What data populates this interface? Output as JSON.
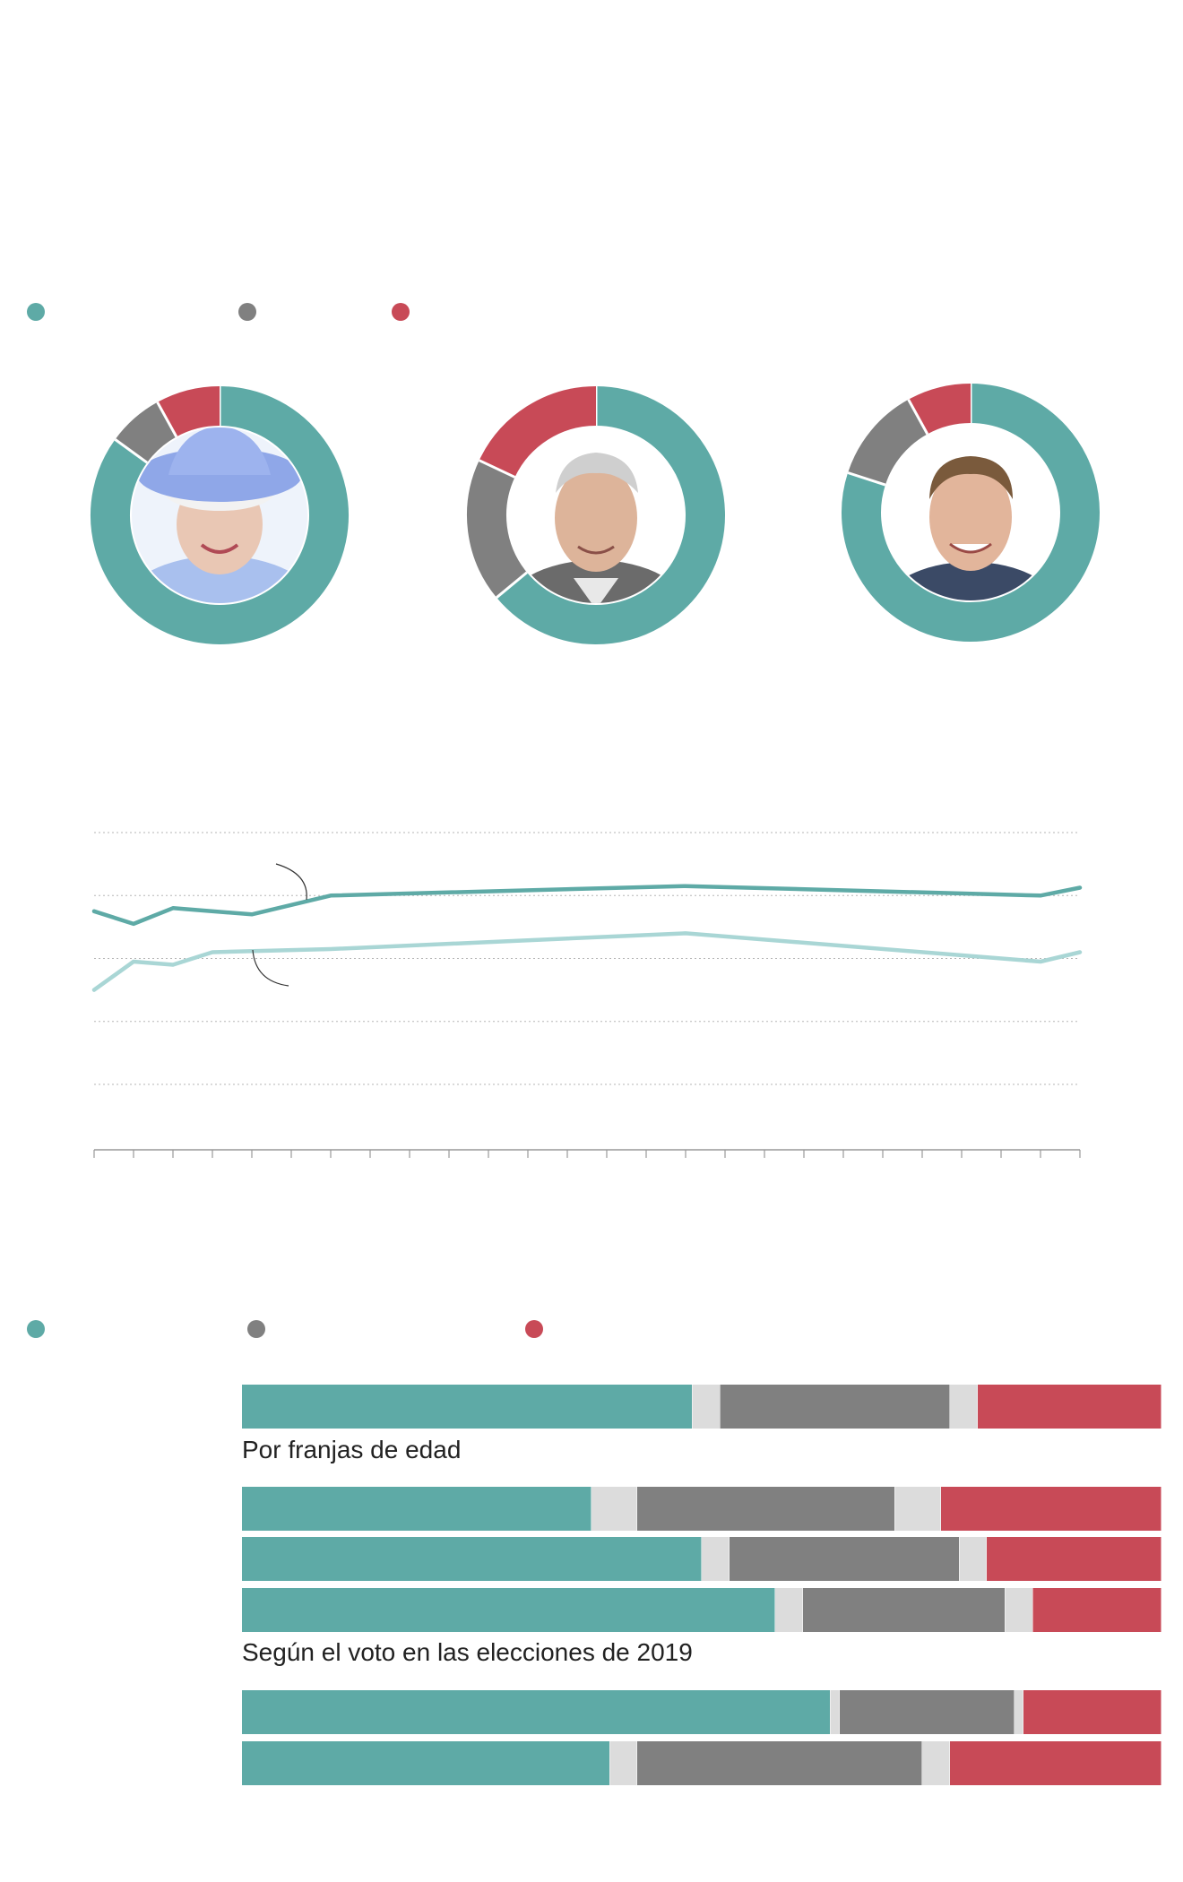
{
  "colors": {
    "favorable": "#5eaaa6",
    "neutral": "#808080",
    "unfavorable": "#c84a57",
    "unknown": "#dcdcdc",
    "line_light": "#a9d6d5",
    "grid": "#b5b5b5",
    "axis": "#999999"
  },
  "legend_top": [
    {
      "icon": "teal-dot-icon",
      "color": "#5eaaa6"
    },
    {
      "icon": "gray-dot-icon",
      "color": "#808080"
    },
    {
      "icon": "red-dot-icon",
      "color": "#c84a57"
    }
  ],
  "legend_bottom": [
    {
      "icon": "teal-dot-icon",
      "color": "#5eaaa6"
    },
    {
      "icon": "gray-dot-icon",
      "color": "#808080"
    },
    {
      "icon": "red-dot-icon",
      "color": "#c84a57"
    }
  ],
  "labels": {
    "age_section": "Por franjas de edad",
    "vote_section": "Según el voto en las elecciones de 2019"
  },
  "chart_data": [
    {
      "type": "pie",
      "subtype": "donut",
      "portrait": "queen-elizabeth",
      "slices": [
        {
          "key": "favorable",
          "value": 85
        },
        {
          "key": "neutral",
          "value": 7
        },
        {
          "key": "unfavorable",
          "value": 8
        }
      ]
    },
    {
      "type": "pie",
      "subtype": "donut",
      "portrait": "prince-charles",
      "slices": [
        {
          "key": "favorable",
          "value": 64
        },
        {
          "key": "neutral",
          "value": 18
        },
        {
          "key": "unfavorable",
          "value": 18
        }
      ]
    },
    {
      "type": "pie",
      "subtype": "donut",
      "portrait": "prince-william",
      "slices": [
        {
          "key": "favorable",
          "value": 80
        },
        {
          "key": "neutral",
          "value": 12
        },
        {
          "key": "unfavorable",
          "value": 8
        }
      ]
    },
    {
      "type": "line",
      "x": [
        0,
        1,
        2,
        3,
        4,
        5,
        6,
        7,
        8,
        9,
        10,
        11,
        12,
        13,
        14,
        15,
        16,
        17,
        18,
        19,
        20,
        21,
        22,
        23,
        24,
        25
      ],
      "series": [
        {
          "key": "dark",
          "values": [
            75,
            71,
            76,
            null,
            74,
            null,
            80,
            null,
            null,
            null,
            null,
            null,
            null,
            null,
            null,
            83,
            null,
            null,
            null,
            null,
            null,
            null,
            null,
            null,
            80,
            82.5
          ]
        },
        {
          "key": "light",
          "values": [
            50,
            59,
            58,
            62,
            null,
            null,
            63,
            null,
            null,
            null,
            null,
            null,
            null,
            null,
            null,
            68,
            null,
            null,
            null,
            null,
            null,
            null,
            null,
            null,
            59,
            62
          ]
        }
      ],
      "ylim": [
        20,
        100
      ],
      "gridlines": [
        20,
        40,
        60,
        80,
        100
      ],
      "x_ticks": 26,
      "grid": true
    },
    {
      "type": "bar",
      "orientation": "horizontal",
      "stacked": true,
      "groups": [
        {
          "rows": [
            {
              "favorable": 49,
              "unknown1": 3,
              "neutral": 25,
              "unknown2": 3,
              "unfavorable": 20
            }
          ]
        },
        {
          "label_key": "age_section",
          "rows": [
            {
              "favorable": 38,
              "unknown1": 5,
              "neutral": 28,
              "unknown2": 5,
              "unfavorable": 24
            },
            {
              "favorable": 50,
              "unknown1": 3,
              "neutral": 25,
              "unknown2": 3,
              "unfavorable": 19
            },
            {
              "favorable": 58,
              "unknown1": 3,
              "neutral": 22,
              "unknown2": 3,
              "unfavorable": 14
            }
          ]
        },
        {
          "label_key": "vote_section",
          "rows": [
            {
              "favorable": 64,
              "unknown1": 1,
              "neutral": 19,
              "unknown2": 1,
              "unfavorable": 15
            },
            {
              "favorable": 40,
              "unknown1": 3,
              "neutral": 31,
              "unknown2": 3,
              "unfavorable": 23
            }
          ]
        }
      ]
    }
  ]
}
